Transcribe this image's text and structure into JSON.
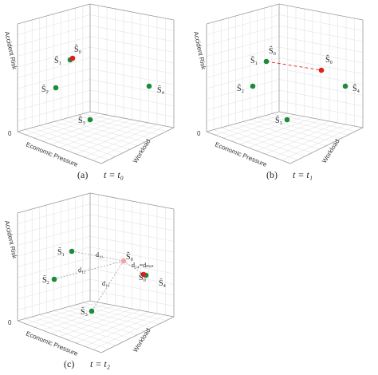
{
  "panels": [
    {
      "caption": {
        "label": "(a)",
        "time": "t = t₀"
      },
      "axes": {
        "z": "Accident Risk",
        "x": "Economic Pressure",
        "y": "Workload",
        "origin": "0"
      },
      "points": [
        "Ŝ₀",
        "S̃₁",
        "S̃₂",
        "S̃₃",
        "S̃₄"
      ]
    },
    {
      "caption": {
        "label": "(b)",
        "time": "t = t₁"
      },
      "axes": {
        "z": "Accident Risk",
        "x": "Economic Pressure",
        "y": "Workload",
        "origin": "0"
      },
      "points": [
        "Ŝ₀",
        "S̃₁",
        "S̃₂",
        "S̃₃",
        "S̃₄",
        "Ŝ₀"
      ]
    },
    {
      "caption": {
        "label": "(c)",
        "time": "t = t₂"
      },
      "axes": {
        "z": "Accident Risk",
        "x": "Economic Pressure",
        "y": "Workload",
        "origin": "0"
      },
      "points": [
        "S̃₁",
        "S̃₂",
        "S̃₃",
        "S̃₄",
        "Ŝ₀",
        "Ŝ₀"
      ],
      "distances": [
        "d₁₁",
        "d₁₂",
        "d₁₃",
        "d₁₄=dₘᵢₙ"
      ]
    }
  ]
}
